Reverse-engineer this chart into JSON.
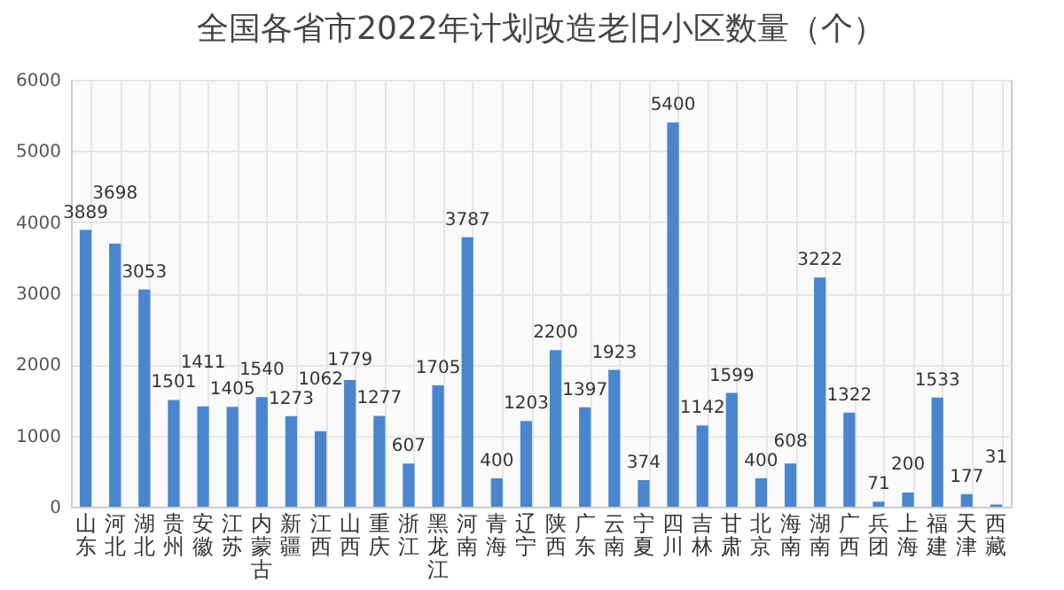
{
  "chart_data": {
    "type": "bar",
    "title": "全国各省市2022年计划改造老旧小区数量（个）",
    "categories": [
      "山东",
      "河北",
      "湖北",
      "贵州",
      "安徽",
      "江苏",
      "内蒙古",
      "新疆",
      "江西",
      "山西",
      "重庆",
      "浙江",
      "黑龙江",
      "河南",
      "青海",
      "辽宁",
      "陕西",
      "广东",
      "云南",
      "宁夏",
      "四川",
      "吉林",
      "甘肃",
      "北京",
      "海南",
      "湖南",
      "广西",
      "兵团",
      "上海",
      "福建",
      "天津",
      "西藏"
    ],
    "values": [
      3889,
      3698,
      3053,
      1501,
      1411,
      1405,
      1540,
      1273,
      1062,
      1779,
      1277,
      607,
      1705,
      3787,
      400,
      1203,
      2200,
      1397,
      1923,
      374,
      5400,
      1142,
      1599,
      400,
      608,
      3222,
      1322,
      71,
      200,
      1533,
      177,
      31
    ],
    "color": "#4a86d0",
    "ylim": [
      0,
      6000
    ],
    "yticks": [
      0,
      1000,
      2000,
      3000,
      4000,
      5000,
      6000
    ],
    "grid": true,
    "data_labels": true
  }
}
